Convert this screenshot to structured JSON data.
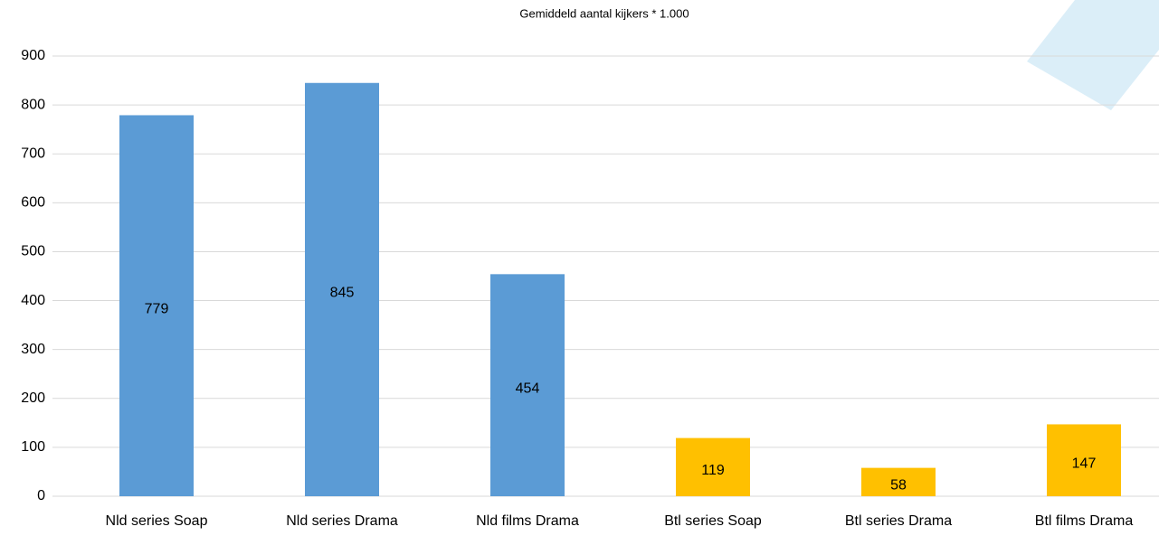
{
  "chart_data": {
    "type": "bar",
    "title": "Gemiddeld aantal kijkers * 1.000",
    "categories": [
      "Nld series Soap",
      "Nld series Drama",
      "Nld films Drama",
      "Btl series Soap",
      "Btl series Drama",
      "Btl films Drama"
    ],
    "values": [
      779,
      845,
      454,
      119,
      58,
      147
    ],
    "colors": [
      "#5b9bd5",
      "#5b9bd5",
      "#5b9bd5",
      "#ffc000",
      "#ffc000",
      "#ffc000"
    ],
    "ylim": [
      0,
      900
    ],
    "yticks": [
      0,
      100,
      200,
      300,
      400,
      500,
      600,
      700,
      800,
      900
    ],
    "grid": true
  }
}
